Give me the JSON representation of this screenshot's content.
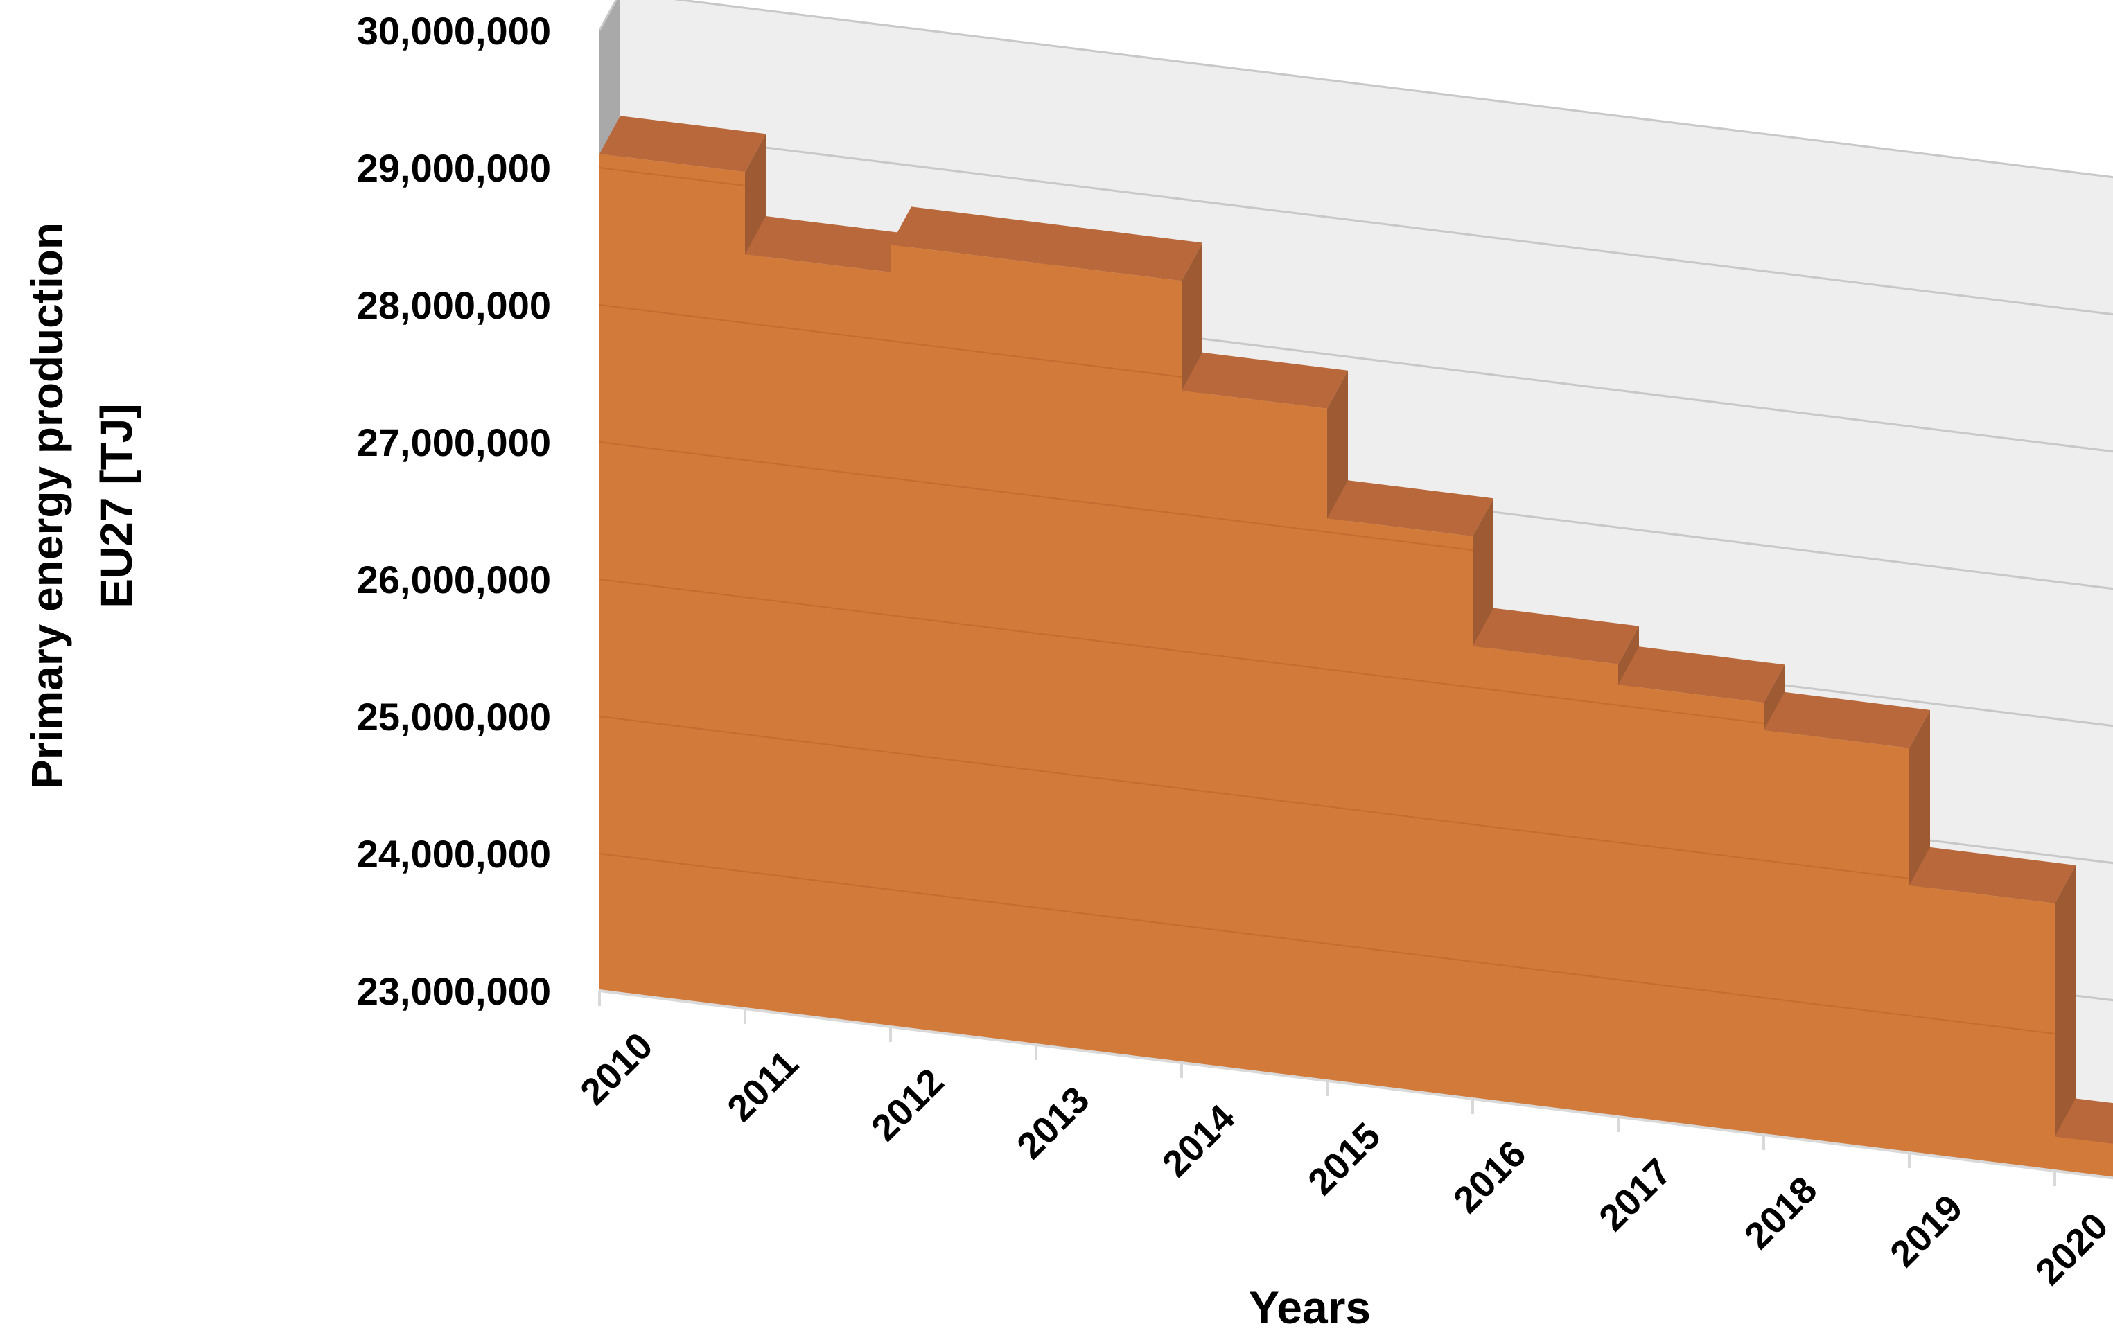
{
  "chart_data": {
    "type": "bar",
    "style": "3d-column",
    "xlabel": "Years",
    "ylabel": [
      "Primary energy production",
      "EU27 [TJ]"
    ],
    "categories": [
      "2010",
      "2011",
      "2012",
      "2013",
      "2014",
      "2015",
      "2016",
      "2017",
      "2018",
      "2019",
      "2020"
    ],
    "values": [
      29100000,
      28500000,
      28700000,
      28700000,
      27900000,
      27100000,
      26300000,
      26150000,
      25950000,
      24950000,
      23250000
    ],
    "ylim": [
      23000000,
      30000000
    ],
    "yticks": [
      23000000,
      24000000,
      25000000,
      26000000,
      27000000,
      28000000,
      29000000,
      30000000
    ],
    "ytick_labels": [
      "23,000,000",
      "24,000,000",
      "25,000,000",
      "26,000,000",
      "27,000,000",
      "28,000,000",
      "29,000,000",
      "30,000,000"
    ],
    "grid": true,
    "legend": "none",
    "colors": {
      "bar_front": "#d27a3a",
      "bar_side": "#9e5a32",
      "bar_top": "#b8683a",
      "floor": "#d67c3c",
      "wall": "#eeeeee",
      "wall_shadow": "#a9a9a9",
      "grid": "#c8c8c8",
      "axis": "#d9d9d9"
    }
  }
}
